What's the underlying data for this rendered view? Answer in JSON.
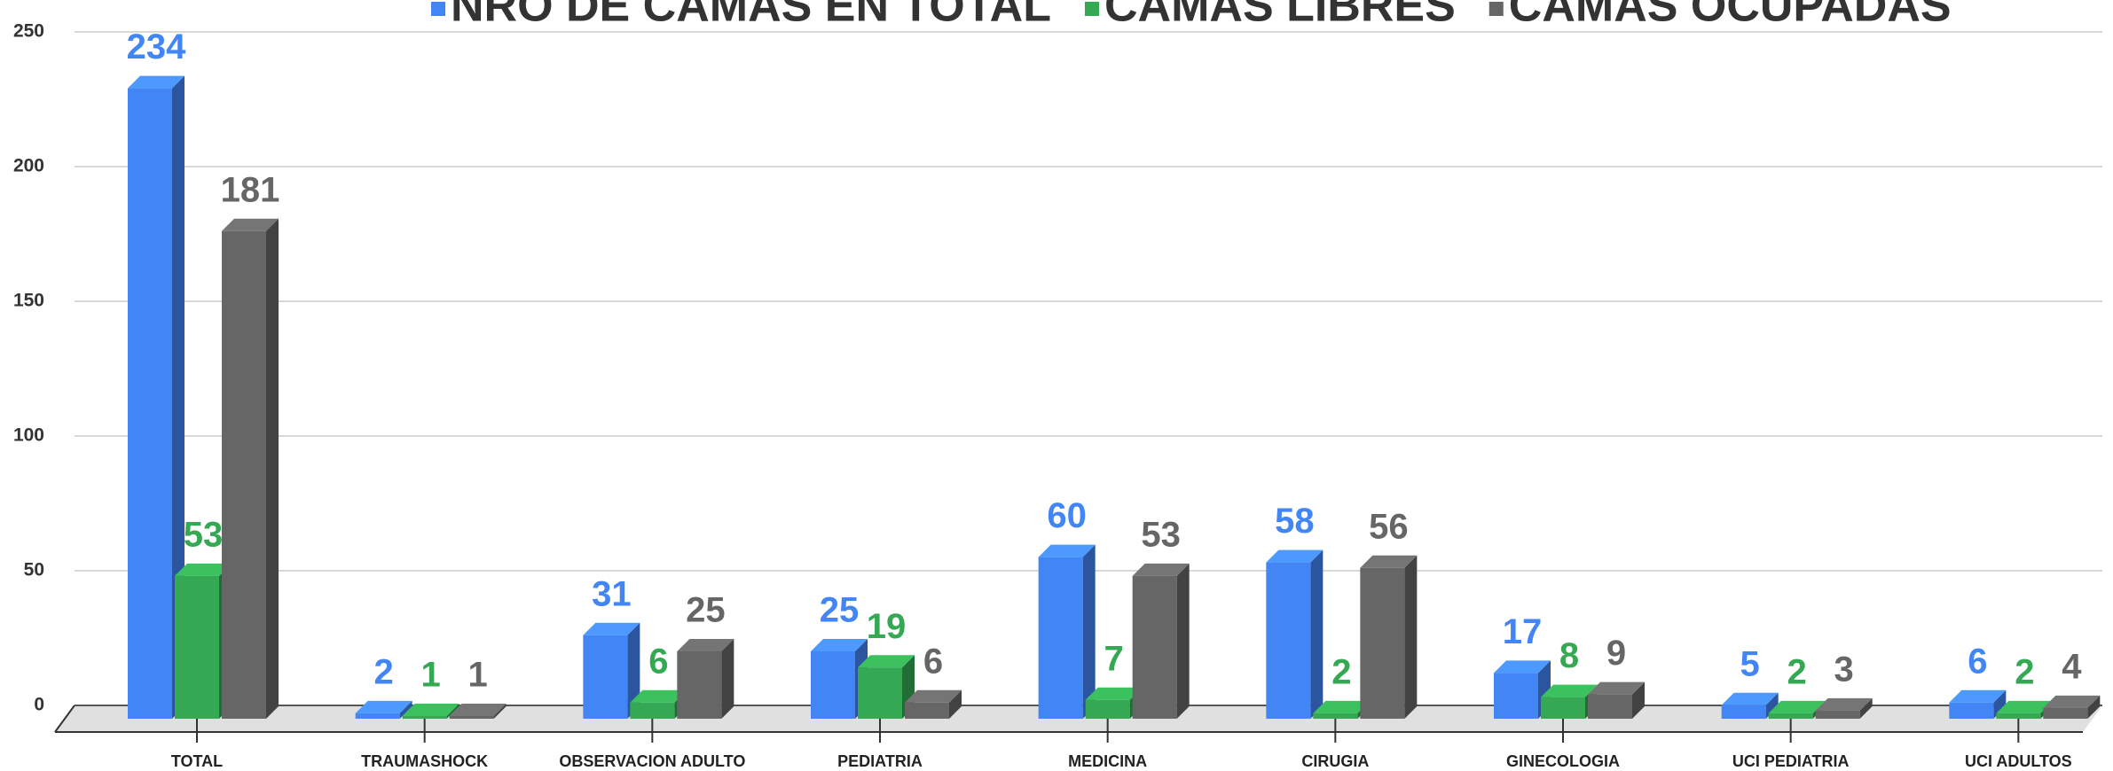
{
  "chart_data": {
    "type": "bar3d",
    "categories": [
      "TOTAL",
      "TRAUMASHOCK",
      "OBSERVACION ADULTO",
      "PEDIATRIA",
      "MEDICINA",
      "CIRUGIA",
      "GINECOLOGIA",
      "UCI PEDIATRIA",
      "UCI ADULTOS"
    ],
    "series": [
      {
        "name": "NRO DE CAMAS EN TOTAL",
        "color": "#4285f4",
        "values": [
          234,
          2,
          31,
          25,
          60,
          58,
          17,
          5,
          6
        ]
      },
      {
        "name": "CAMAS LIBRES",
        "color": "#34a853",
        "values": [
          53,
          1,
          6,
          19,
          7,
          2,
          8,
          2,
          2
        ]
      },
      {
        "name": "CAMAS OCUPADAS",
        "color": "#666666",
        "values": [
          181,
          1,
          25,
          6,
          53,
          56,
          9,
          3,
          4
        ]
      }
    ],
    "ylim": [
      0,
      250
    ],
    "yticks": [
      0,
      50,
      100,
      150,
      200,
      250
    ],
    "grid": true,
    "legend": "top"
  }
}
